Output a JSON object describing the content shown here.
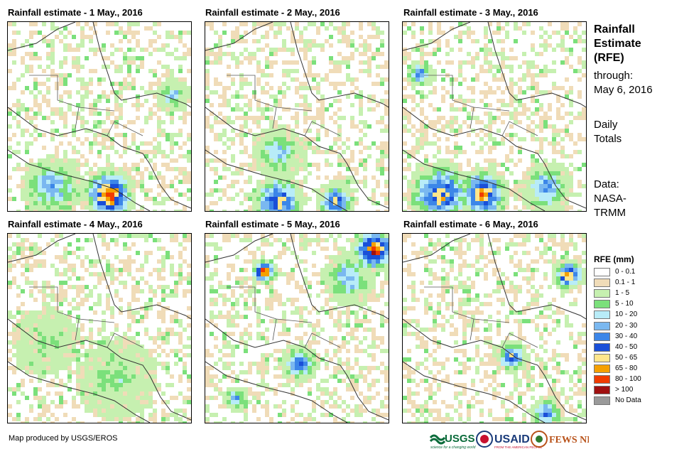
{
  "panels": [
    {
      "title": "Rainfall estimate - 1 May., 2016"
    },
    {
      "title": "Rainfall estimate - 2 May., 2016"
    },
    {
      "title": "Rainfall estimate - 3 May., 2016"
    },
    {
      "title": "Rainfall estimate - 4 May., 2016"
    },
    {
      "title": "Rainfall estimate - 5 May., 2016"
    },
    {
      "title": "Rainfall estimate - 6 May., 2016"
    }
  ],
  "sidebar": {
    "title_line1": "Rainfall",
    "title_line2": "Estimate",
    "title_line3": "(RFE)",
    "through_label": "through:",
    "through_date": "May 6, 2016",
    "daily_line1": "Daily",
    "daily_line2": "Totals",
    "data_line1": "Data:",
    "data_line2": "NASA-",
    "data_line3": "TRMM"
  },
  "legend": {
    "title": "RFE (mm)",
    "items": [
      {
        "label": "0 - 0.1",
        "color": "#ffffff"
      },
      {
        "label": "0.1 - 1",
        "color": "#f0dcb8"
      },
      {
        "label": "1 - 5",
        "color": "#c6f0b0"
      },
      {
        "label": "5 - 10",
        "color": "#7be07b"
      },
      {
        "label": "10 - 20",
        "color": "#b8ecf8"
      },
      {
        "label": "20 - 30",
        "color": "#7ab8f0"
      },
      {
        "label": "30 - 40",
        "color": "#3c86e8"
      },
      {
        "label": "40 - 50",
        "color": "#1a4fd8"
      },
      {
        "label": "50 - 65",
        "color": "#ffe68c"
      },
      {
        "label": "65 - 80",
        "color": "#f5a000"
      },
      {
        "label": "80 - 100",
        "color": "#f03c00"
      },
      {
        "label": "> 100",
        "color": "#a01010"
      },
      {
        "label": "No Data",
        "color": "#9a9a9a"
      }
    ]
  },
  "footer": {
    "credit": "Map produced by USGS/EROS",
    "logos": {
      "usgs": "USGS",
      "usgs_tagline": "science for a changing world",
      "usaid": "USAID",
      "usaid_tagline": "FROM THE AMERICAN PEOPLE",
      "fewsnet": "FEWS NET"
    }
  }
}
